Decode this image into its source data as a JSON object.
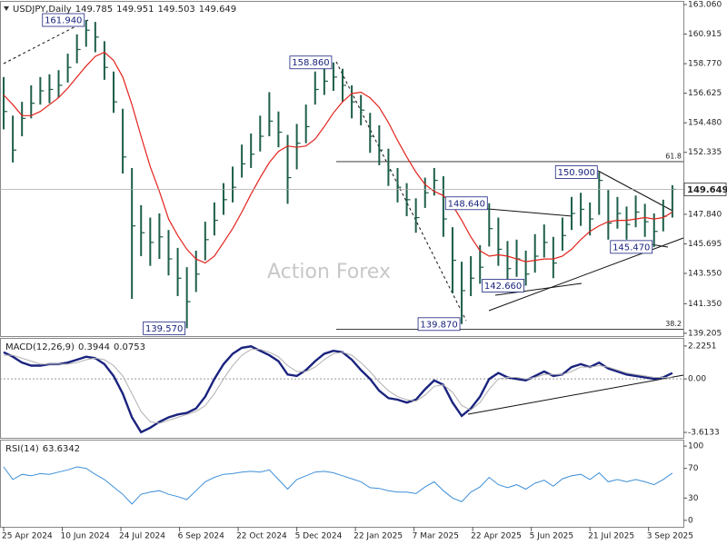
{
  "chart_data": [
    {
      "type": "ohlc",
      "title": "USDJPY,Daily",
      "quote": {
        "open": 149.785,
        "high": 149.951,
        "low": 149.503,
        "close": 149.649
      },
      "watermark": "Action Forex",
      "x": [
        0,
        5,
        10,
        15,
        20,
        25,
        30,
        35,
        40,
        45,
        50,
        55,
        60,
        65,
        70,
        75,
        80,
        85,
        90,
        95,
        100,
        105,
        110,
        115,
        120,
        125,
        130,
        135,
        140,
        145,
        150,
        155,
        160,
        165,
        170,
        175,
        180,
        185,
        190,
        195,
        200,
        205,
        210,
        215,
        220,
        225,
        230,
        235,
        240,
        245,
        250,
        255,
        260,
        265,
        270,
        275,
        280,
        285,
        290,
        295,
        300,
        305,
        310,
        315,
        320,
        325,
        330,
        335,
        340,
        345,
        350,
        355,
        360,
        365
      ],
      "high": [
        157.8,
        155.0,
        156.0,
        157.2,
        157.8,
        158.0,
        158.3,
        159.5,
        160.9,
        161.94,
        161.8,
        160.4,
        158.2,
        155.5,
        151.2,
        148.5,
        147.6,
        147.9,
        146.7,
        145.4,
        144.0,
        145.2,
        147.3,
        148.7,
        150.1,
        151.3,
        152.9,
        153.7,
        155.0,
        156.7,
        155.3,
        153.6,
        154.4,
        155.8,
        158.2,
        158.6,
        158.86,
        158.4,
        157.2,
        156.5,
        155.2,
        154.3,
        152.6,
        151.2,
        150.1,
        149.0,
        150.5,
        151.2,
        150.6,
        146.9,
        144.4,
        144.8,
        145.6,
        148.64,
        147.6,
        145.9,
        146.0,
        145.2,
        146.4,
        147.1,
        146.2,
        147.6,
        149.1,
        149.4,
        148.7,
        150.9,
        149.6,
        149.1,
        148.4,
        149.2,
        148.6,
        147.9,
        148.9,
        149.951
      ],
      "low": [
        154.0,
        151.6,
        153.5,
        154.8,
        155.8,
        155.9,
        156.3,
        157.4,
        158.8,
        160.0,
        159.6,
        157.6,
        155.2,
        150.8,
        141.7,
        144.8,
        144.1,
        144.6,
        143.4,
        141.9,
        139.57,
        142.2,
        144.5,
        146.3,
        147.8,
        148.7,
        150.5,
        151.2,
        152.4,
        153.5,
        152.7,
        148.6,
        151.1,
        153.0,
        155.8,
        156.5,
        156.8,
        156.0,
        154.8,
        154.3,
        152.3,
        151.4,
        149.9,
        148.7,
        147.7,
        146.5,
        148.3,
        149.2,
        146.2,
        142.1,
        139.87,
        141.9,
        142.8,
        145.5,
        144.1,
        142.7,
        143.3,
        142.66,
        143.6,
        144.7,
        143.2,
        145.2,
        146.7,
        147.0,
        146.3,
        147.8,
        146.0,
        146.8,
        146.0,
        146.9,
        146.2,
        145.47,
        146.6,
        147.6
      ],
      "close": [
        155.3,
        152.5,
        154.8,
        155.9,
        156.8,
        156.9,
        157.2,
        158.5,
        159.8,
        161.2,
        160.7,
        158.5,
        156.0,
        152.0,
        147.0,
        146.5,
        145.8,
        146.2,
        144.6,
        143.2,
        141.5,
        143.5,
        146.0,
        147.4,
        148.9,
        149.8,
        151.5,
        152.2,
        153.5,
        154.6,
        153.8,
        150.5,
        153.0,
        154.2,
        156.9,
        157.5,
        157.8,
        157.2,
        156.0,
        155.4,
        153.5,
        152.5,
        151.0,
        149.8,
        148.9,
        147.6,
        149.4,
        150.3,
        147.5,
        144.5,
        142.3,
        143.2,
        144.0,
        146.8,
        145.3,
        143.9,
        144.6,
        143.5,
        144.8,
        145.8,
        144.3,
        146.3,
        147.9,
        148.2,
        147.5,
        150.3,
        147.2,
        147.9,
        147.1,
        148.0,
        147.3,
        146.6,
        147.7,
        149.649
      ],
      "color": "#1d5e4b",
      "ma": {
        "color": "#e3231c",
        "values": [
          156.5,
          155.8,
          155.0,
          155.0,
          155.3,
          155.8,
          156.3,
          157.0,
          157.8,
          158.6,
          159.3,
          159.6,
          159.0,
          157.8,
          155.8,
          153.5,
          151.3,
          149.5,
          147.5,
          146.3,
          145.3,
          144.6,
          144.3,
          144.8,
          145.8,
          146.8,
          148.0,
          149.3,
          150.5,
          151.6,
          152.4,
          152.8,
          152.7,
          152.8,
          153.3,
          154.2,
          155.2,
          156.0,
          156.6,
          156.7,
          156.3,
          155.6,
          154.5,
          153.2,
          152.0,
          150.9,
          150.0,
          149.5,
          149.2,
          148.5,
          147.4,
          146.2,
          145.2,
          144.8,
          144.9,
          144.8,
          144.6,
          144.4,
          144.5,
          144.6,
          144.6,
          144.8,
          145.3,
          146.0,
          146.6,
          147.0,
          147.3,
          147.4,
          147.4,
          147.5,
          147.6,
          147.5,
          147.6,
          148.0
        ]
      },
      "xlim": [
        -2,
        371
      ],
      "ylim": [
        139.0,
        163.26
      ],
      "yticks": [
        {
          "value": 163.06,
          "label": "163.060"
        },
        {
          "value": 160.915,
          "label": "160.915"
        },
        {
          "value": 158.77,
          "label": "158.770"
        },
        {
          "value": 156.625,
          "label": "156.625"
        },
        {
          "value": 154.48,
          "label": "154.480"
        },
        {
          "value": 152.335,
          "label": "152.335"
        },
        {
          "value": 147.84,
          "label": "147.840"
        },
        {
          "value": 145.695,
          "label": "145.695"
        },
        {
          "value": 143.55,
          "label": "143.550"
        },
        {
          "value": 141.35,
          "label": "141.350"
        },
        {
          "value": 139.205,
          "label": "139.205"
        }
      ],
      "levels": [
        {
          "value": 151.66,
          "label": "61.8"
        },
        {
          "value": 139.5,
          "label": "38.2"
        }
      ],
      "annotations": [
        {
          "x": 45,
          "value": 161.94,
          "label": "161.940"
        },
        {
          "x": 180,
          "value": 158.86,
          "label": "158.860"
        },
        {
          "x": 100,
          "value": 139.57,
          "label": "139.570"
        },
        {
          "x": 250,
          "value": 139.87,
          "label": "139.870"
        },
        {
          "x": 265,
          "value": 148.64,
          "label": "148.640"
        },
        {
          "x": 285,
          "value": 142.66,
          "label": "142.660"
        },
        {
          "x": 325,
          "value": 150.9,
          "label": "150.900"
        },
        {
          "x": 355,
          "value": 145.47,
          "label": "145.470"
        }
      ]
    },
    {
      "type": "line",
      "title": "MACD(12,26,9)",
      "x": [
        0,
        5,
        10,
        15,
        20,
        25,
        30,
        35,
        40,
        45,
        50,
        55,
        60,
        65,
        70,
        75,
        80,
        85,
        90,
        95,
        100,
        105,
        110,
        115,
        120,
        125,
        130,
        135,
        140,
        145,
        150,
        155,
        160,
        165,
        170,
        175,
        180,
        185,
        190,
        195,
        200,
        205,
        210,
        215,
        220,
        225,
        230,
        235,
        240,
        245,
        250,
        255,
        260,
        265,
        270,
        275,
        280,
        285,
        290,
        295,
        300,
        305,
        310,
        315,
        320,
        325,
        330,
        335,
        340,
        345,
        350,
        355,
        360,
        365
      ],
      "series": [
        {
          "color": "#1a237e",
          "width": 2.4,
          "values": [
            1.8,
            1.5,
            1.1,
            0.9,
            0.9,
            1.0,
            1.0,
            1.1,
            1.3,
            1.5,
            1.4,
            1.0,
            0.2,
            -1.0,
            -2.6,
            -3.6,
            -3.3,
            -2.9,
            -2.6,
            -2.4,
            -2.3,
            -2.0,
            -1.2,
            0.0,
            1.0,
            1.7,
            2.1,
            2.2,
            1.9,
            1.6,
            1.2,
            0.3,
            0.2,
            0.6,
            1.2,
            1.7,
            1.9,
            1.8,
            1.3,
            0.6,
            0.0,
            -0.8,
            -1.3,
            -1.4,
            -1.6,
            -1.4,
            -0.7,
            -0.1,
            -0.4,
            -1.6,
            -2.5,
            -2.0,
            -1.2,
            0.0,
            0.4,
            0.1,
            0.0,
            -0.1,
            0.2,
            0.5,
            0.2,
            0.3,
            0.8,
            1.0,
            0.8,
            1.1,
            0.7,
            0.5,
            0.3,
            0.2,
            0.1,
            0.0,
            0.1,
            0.3944
          ]
        },
        {
          "color": "#b0b0b0",
          "width": 1,
          "values": [
            1.6,
            1.6,
            1.4,
            1.2,
            1.0,
            1.0,
            1.0,
            1.0,
            1.1,
            1.3,
            1.4,
            1.3,
            0.9,
            0.2,
            -1.0,
            -2.2,
            -2.9,
            -3.0,
            -2.8,
            -2.6,
            -2.4,
            -2.2,
            -1.8,
            -1.0,
            0.0,
            0.9,
            1.6,
            2.0,
            2.0,
            1.8,
            1.5,
            0.9,
            0.5,
            0.5,
            0.8,
            1.3,
            1.7,
            1.8,
            1.6,
            1.1,
            0.5,
            -0.2,
            -0.8,
            -1.2,
            -1.4,
            -1.5,
            -1.1,
            -0.5,
            -0.4,
            -0.9,
            -1.8,
            -2.1,
            -1.6,
            -0.7,
            0.0,
            0.1,
            0.1,
            0.0,
            0.1,
            0.3,
            0.3,
            0.3,
            0.5,
            0.8,
            0.8,
            0.9,
            0.8,
            0.6,
            0.4,
            0.3,
            0.2,
            0.1,
            0.1,
            0.0753
          ]
        }
      ],
      "xlim": [
        -2,
        371
      ],
      "ylim": [
        -3.98,
        2.71
      ],
      "yticks": [
        2.2251,
        {
          "value": 0,
          "label": "0.00"
        },
        -3.6133
      ]
    },
    {
      "type": "line",
      "title": "RSI(14)",
      "x": [
        0,
        5,
        10,
        15,
        20,
        25,
        30,
        35,
        40,
        45,
        50,
        55,
        60,
        65,
        70,
        75,
        80,
        85,
        90,
        95,
        100,
        105,
        110,
        115,
        120,
        125,
        130,
        135,
        140,
        145,
        150,
        155,
        160,
        165,
        170,
        175,
        180,
        185,
        190,
        195,
        200,
        205,
        210,
        215,
        220,
        225,
        230,
        235,
        240,
        245,
        250,
        255,
        260,
        265,
        270,
        275,
        280,
        285,
        290,
        295,
        300,
        305,
        310,
        315,
        320,
        325,
        330,
        335,
        340,
        345,
        350,
        355,
        360,
        365
      ],
      "series": [
        {
          "color": "#3d8fd8",
          "width": 1,
          "values": [
            72,
            55,
            62,
            60,
            63,
            62,
            65,
            68,
            72,
            70,
            62,
            55,
            45,
            35,
            22,
            35,
            38,
            40,
            35,
            32,
            28,
            40,
            52,
            58,
            62,
            63,
            65,
            66,
            65,
            68,
            55,
            42,
            55,
            60,
            65,
            66,
            64,
            60,
            56,
            52,
            44,
            43,
            40,
            38,
            38,
            36,
            45,
            52,
            40,
            30,
            25,
            38,
            45,
            58,
            48,
            44,
            48,
            42,
            50,
            54,
            46,
            56,
            60,
            62,
            55,
            64,
            52,
            55,
            52,
            55,
            52,
            48,
            55,
            63.6342
          ]
        }
      ],
      "xlim": [
        -2,
        371
      ],
      "ylim": [
        -8.75,
        107.5
      ],
      "yticks": [
        100,
        70,
        30,
        0
      ],
      "xticks": [
        {
          "value": 0,
          "label": "25 Apr 2024"
        },
        {
          "value": 32,
          "label": "10 Jun 2024"
        },
        {
          "value": 64,
          "label": "24 Jul 2024"
        },
        {
          "value": 96,
          "label": "6 Sep 2024"
        },
        {
          "value": 128,
          "label": "22 Oct 2024"
        },
        {
          "value": 160,
          "label": "5 Dec 2024"
        },
        {
          "value": 192,
          "label": "22 Jan 2025"
        },
        {
          "value": 224,
          "label": "7 Mar 2025"
        },
        {
          "value": 256,
          "label": "22 Apr 2025"
        },
        {
          "value": 288,
          "label": "5 Jun 2025"
        },
        {
          "value": 320,
          "label": "21 Jul 2025"
        },
        {
          "value": 352,
          "label": "3 Sep 2025"
        }
      ]
    }
  ]
}
